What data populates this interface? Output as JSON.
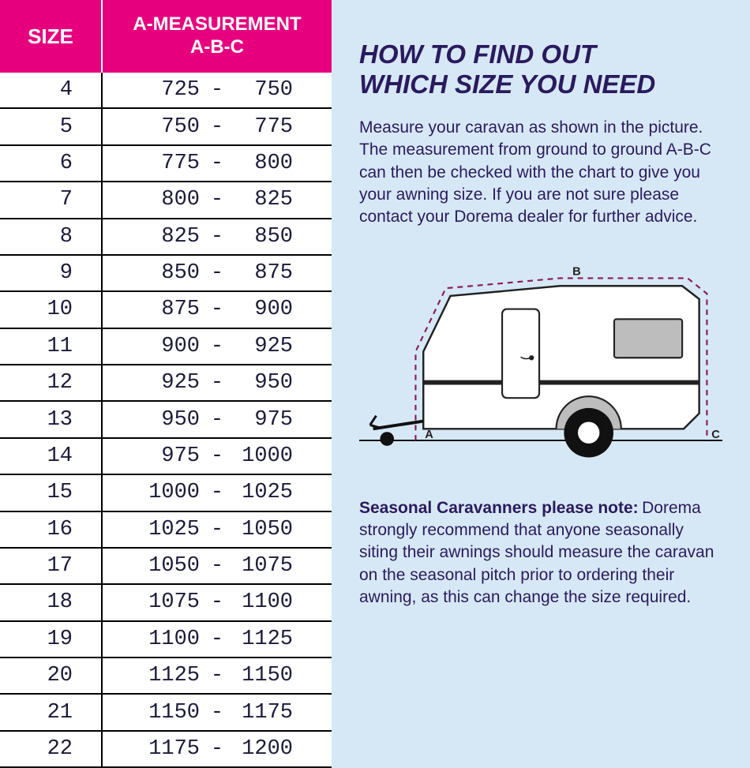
{
  "table": {
    "header_size": "SIZE",
    "header_measurement": "A-MEASUREMENT\nA-B-C",
    "rows": [
      {
        "size": "4",
        "from": "725",
        "to": "750"
      },
      {
        "size": "5",
        "from": "750",
        "to": "775"
      },
      {
        "size": "6",
        "from": "775",
        "to": "800"
      },
      {
        "size": "7",
        "from": "800",
        "to": "825"
      },
      {
        "size": "8",
        "from": "825",
        "to": "850"
      },
      {
        "size": "9",
        "from": "850",
        "to": "875"
      },
      {
        "size": "10",
        "from": "875",
        "to": "900"
      },
      {
        "size": "11",
        "from": "900",
        "to": "925"
      },
      {
        "size": "12",
        "from": "925",
        "to": "950"
      },
      {
        "size": "13",
        "from": "950",
        "to": "975"
      },
      {
        "size": "14",
        "from": "975",
        "to": "1000"
      },
      {
        "size": "15",
        "from": "1000",
        "to": "1025"
      },
      {
        "size": "16",
        "from": "1025",
        "to": "1050"
      },
      {
        "size": "17",
        "from": "1050",
        "to": "1075"
      },
      {
        "size": "18",
        "from": "1075",
        "to": "1100"
      },
      {
        "size": "19",
        "from": "1100",
        "to": "1125"
      },
      {
        "size": "20",
        "from": "1125",
        "to": "1150"
      },
      {
        "size": "21",
        "from": "1150",
        "to": "1175"
      },
      {
        "size": "22",
        "from": "1175",
        "to": "1200"
      }
    ],
    "dash": "-",
    "header_bg": "#e6007e",
    "header_fg": "#ffffff",
    "cell_fg": "#1a1a3a",
    "border_color": "#000000"
  },
  "info": {
    "heading": "HOW TO FIND OUT\nWHICH SIZE YOU NEED",
    "intro": "Measure your caravan as shown in the picture. The measurement from ground to ground A-B-C can then be checked with the chart to give you your awning size. If you are not sure please contact your Dorema dealer for further advice.",
    "note_heading": "Seasonal Caravanners please note:",
    "note_body": "Dorema strongly recommend that anyone seasonally siting their awnings should measure the caravan on the seasonal pitch prior to ordering their awning, as this can change the size required.",
    "bg": "#d6e8f5",
    "text_color": "#2a1a5e"
  },
  "diagram": {
    "labels": {
      "a": "A",
      "b": "B",
      "c": "C"
    },
    "body_fill": "#ffffff",
    "body_stroke": "#222222",
    "stripe_color": "#222222",
    "window_fill": "#bdbdbd",
    "wheel_outer": "#111111",
    "wheel_inner": "#ffffff",
    "wheel_arch": "#bdbdbd",
    "ground_color": "#111111",
    "hitch_color": "#111111",
    "measure_color": "#8a1c52",
    "label_color": "#222222"
  }
}
